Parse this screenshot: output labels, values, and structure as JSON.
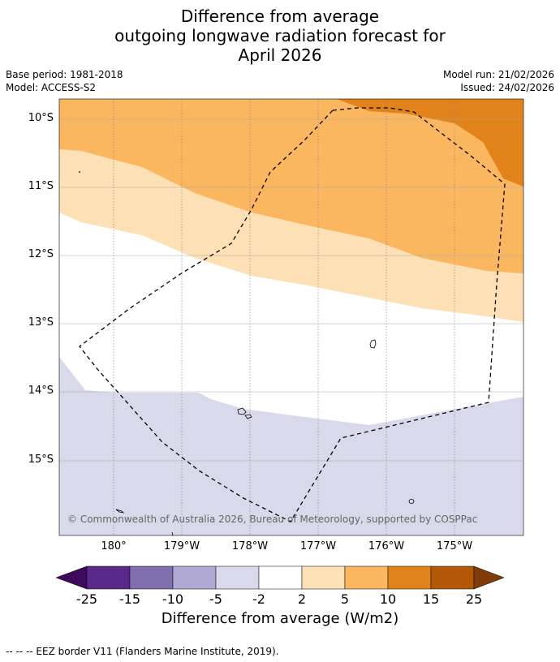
{
  "title": {
    "line1": "Difference from average",
    "line2": "outgoing longwave radiation forecast for",
    "line3": "April 2026"
  },
  "meta": {
    "base_period": "Base period: 1981-2018",
    "model": "Model: ACCESS-S2",
    "model_run": "Model run: 21/02/2026",
    "issued": "Issued: 24/02/2026"
  },
  "axes": {
    "y_labels": [
      "10°S",
      "11°S",
      "12°S",
      "13°S",
      "14°S",
      "15°S"
    ],
    "x_labels": [
      "180°",
      "179°W",
      "178°W",
      "177°W",
      "176°W",
      "175°W"
    ]
  },
  "copyright": "© Commonwealth of Australia 2026, Bureau of Meteorology, supported by COSPPac",
  "colorbar": {
    "title": "Difference from average (W/m2)",
    "ticks": [
      "-25",
      "-15",
      "-10",
      "-5",
      "-2",
      "2",
      "5",
      "10",
      "15",
      "25"
    ],
    "colors": [
      "#3f0a5e",
      "#5a2a8a",
      "#7f6fae",
      "#b0a9d3",
      "#d8d9ea",
      "#ffffff",
      "#fde0b5",
      "#fbb660",
      "#e1821a",
      "#b35806",
      "#7f3b08"
    ]
  },
  "footer": "--  --  -- EEZ border V11 (Flanders Marine Institute, 2019)."
}
